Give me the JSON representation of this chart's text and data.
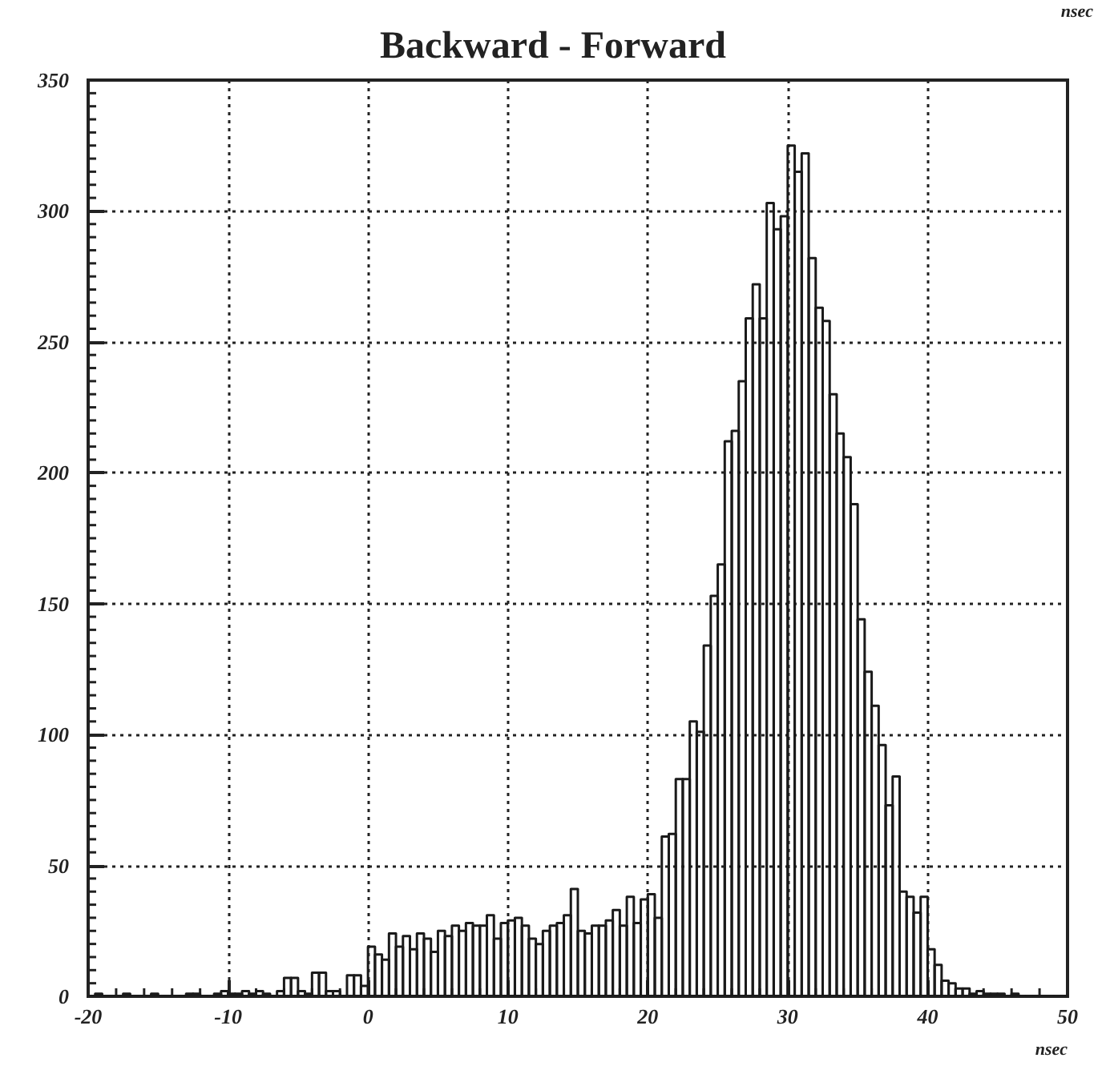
{
  "chart_data": {
    "type": "histogram",
    "title": "Backward - Forward",
    "xlabel": "nsec",
    "annotations": [
      "nsec"
    ],
    "bins": [
      -20,
      -19.5,
      -19,
      -18.5,
      -18,
      -17.5,
      -17,
      -16.5,
      -16,
      -15.5,
      -15,
      -14.5,
      -14,
      -13.5,
      -13,
      -12.5,
      -12,
      -11.5,
      -11,
      -10.5,
      -10,
      -9.5,
      -9,
      -8.5,
      -8,
      -7.5,
      -7,
      -6.5,
      -6,
      -5.5,
      -5,
      -4.5,
      -4,
      -3.5,
      -3,
      -2.5,
      -2,
      -1.5,
      -1,
      -0.5,
      0,
      0.5,
      1,
      1.5,
      2,
      2.5,
      3,
      3.5,
      4,
      4.5,
      5,
      5.5,
      6,
      6.5,
      7,
      7.5,
      8,
      8.5,
      9,
      9.5,
      10,
      10.5,
      11,
      11.5,
      12,
      12.5,
      13,
      13.5,
      14,
      14.5,
      15,
      15.5,
      16,
      16.5,
      17,
      17.5,
      18,
      18.5,
      19,
      19.5,
      20,
      20.5,
      21,
      21.5,
      22,
      22.5,
      23,
      23.5,
      24,
      24.5,
      25,
      25.5,
      26,
      26.5,
      27,
      27.5,
      28,
      28.5,
      29,
      29.5,
      30,
      30.5,
      31,
      31.5,
      32,
      32.5,
      33,
      33.5,
      34,
      34.5,
      35,
      35.5,
      36,
      36.5,
      37,
      37.5,
      38,
      38.5,
      39,
      39.5,
      40,
      40.5,
      41,
      41.5,
      42,
      42.5,
      43,
      43.5,
      44,
      44.5,
      45,
      45.5,
      46,
      46.5,
      47,
      47.5,
      48,
      48.5,
      49,
      49.5,
      50
    ],
    "values": [
      0,
      1,
      0,
      0,
      0,
      1,
      0,
      0,
      0,
      1,
      0,
      0,
      0,
      0,
      1,
      1,
      0,
      0,
      1,
      2,
      1,
      1,
      2,
      1,
      2,
      1,
      0,
      2,
      7,
      7,
      2,
      1,
      9,
      9,
      2,
      2,
      0,
      8,
      8,
      4,
      19,
      16,
      14,
      24,
      19,
      23,
      18,
      24,
      22,
      17,
      25,
      23,
      27,
      25,
      28,
      27,
      27,
      31,
      22,
      28,
      29,
      30,
      27,
      22,
      20,
      25,
      27,
      28,
      31,
      41,
      25,
      24,
      27,
      27,
      29,
      33,
      27,
      38,
      28,
      37,
      39,
      30,
      61,
      62,
      83,
      83,
      105,
      101,
      134,
      153,
      165,
      212,
      216,
      235,
      259,
      272,
      259,
      303,
      293,
      298,
      325,
      315,
      322,
      282,
      263,
      258,
      230,
      215,
      206,
      188,
      144,
      124,
      111,
      96,
      73,
      84,
      40,
      38,
      32,
      38,
      18,
      12,
      6,
      5,
      3,
      3,
      1,
      2,
      1,
      1,
      1,
      0,
      1,
      0,
      0,
      0,
      0,
      0,
      0,
      0
    ],
    "color": "#1a1a1a",
    "xlim": [
      -20,
      50
    ],
    "xticks": [
      -20,
      -10,
      0,
      10,
      20,
      30,
      40,
      50
    ],
    "ylim": [
      0,
      350
    ],
    "yticks": [
      0,
      50,
      100,
      150,
      200,
      250,
      300,
      350
    ],
    "grid": true
  }
}
